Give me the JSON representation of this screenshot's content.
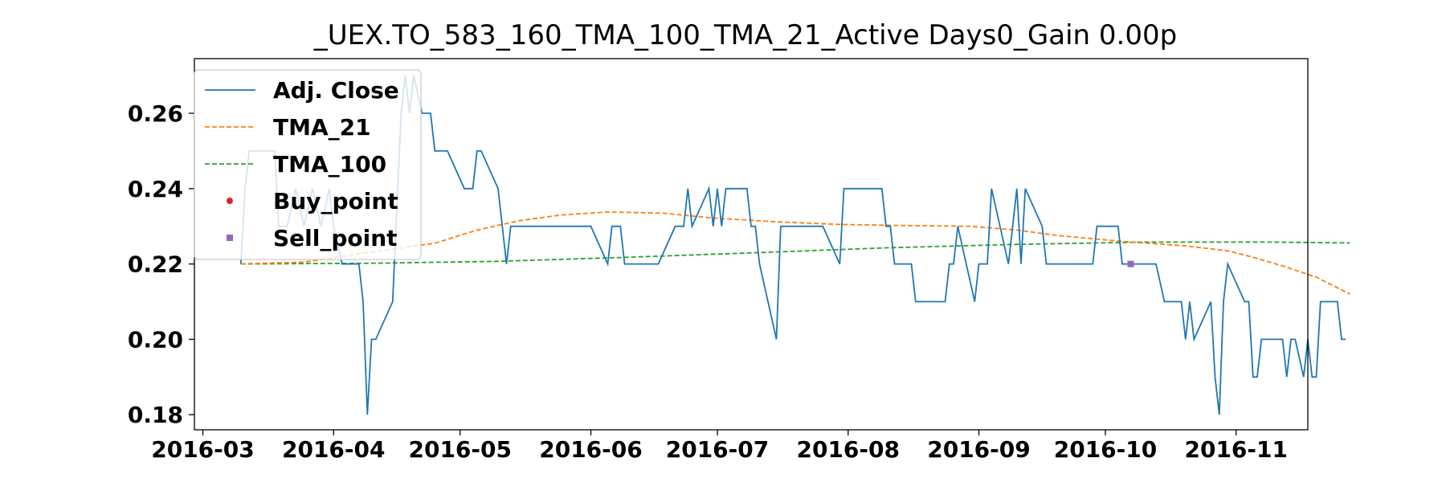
{
  "chart_data": {
    "type": "line",
    "title": "_UEX.TO_583_160_TMA_100_TMA_21_Active Days0_Gain   0.00p",
    "xlabel": "",
    "ylabel": "",
    "xlim": [
      "2016-02-28",
      "2016-11-18"
    ],
    "ylim": [
      0.176,
      0.2745
    ],
    "x_ticks": [
      "2016-03",
      "2016-04",
      "2016-05",
      "2016-06",
      "2016-07",
      "2016-08",
      "2016-09",
      "2016-10",
      "2016-11"
    ],
    "y_ticks": [
      0.18,
      0.2,
      0.22,
      0.24,
      0.26
    ],
    "y_tick_labels": [
      "0.18",
      "0.20",
      "0.22",
      "0.24",
      "0.26"
    ],
    "grid": false,
    "legend_position": "upper-left",
    "series": [
      {
        "name": "Adj. Close",
        "style": "solid",
        "color": "#1f77b4",
        "points": [
          [
            "2016-03-10",
            0.22
          ],
          [
            "2016-03-11",
            0.24
          ],
          [
            "2016-03-12",
            0.25
          ],
          [
            "2016-03-16",
            0.25
          ],
          [
            "2016-03-18",
            0.25
          ],
          [
            "2016-03-19",
            0.23
          ],
          [
            "2016-03-21",
            0.23
          ],
          [
            "2016-03-23",
            0.24
          ],
          [
            "2016-03-25",
            0.23
          ],
          [
            "2016-03-27",
            0.24
          ],
          [
            "2016-03-29",
            0.23
          ],
          [
            "2016-03-31",
            0.24
          ],
          [
            "2016-04-01",
            0.23
          ],
          [
            "2016-04-03",
            0.22
          ],
          [
            "2016-04-06",
            0.22
          ],
          [
            "2016-04-07",
            0.22
          ],
          [
            "2016-04-08",
            0.21
          ],
          [
            "2016-04-09",
            0.18
          ],
          [
            "2016-04-10",
            0.2
          ],
          [
            "2016-04-11",
            0.2
          ],
          [
            "2016-04-15",
            0.21
          ],
          [
            "2016-04-17",
            0.26
          ],
          [
            "2016-04-18",
            0.27
          ],
          [
            "2016-04-19",
            0.26
          ],
          [
            "2016-04-20",
            0.27
          ],
          [
            "2016-04-22",
            0.26
          ],
          [
            "2016-04-24",
            0.26
          ],
          [
            "2016-04-25",
            0.25
          ],
          [
            "2016-04-26",
            0.25
          ],
          [
            "2016-04-28",
            0.25
          ],
          [
            "2016-05-02",
            0.24
          ],
          [
            "2016-05-04",
            0.24
          ],
          [
            "2016-05-05",
            0.25
          ],
          [
            "2016-05-06",
            0.25
          ],
          [
            "2016-05-10",
            0.24
          ],
          [
            "2016-05-12",
            0.22
          ],
          [
            "2016-05-13",
            0.23
          ],
          [
            "2016-05-20",
            0.23
          ],
          [
            "2016-06-01",
            0.23
          ],
          [
            "2016-06-05",
            0.22
          ],
          [
            "2016-06-06",
            0.23
          ],
          [
            "2016-06-08",
            0.23
          ],
          [
            "2016-06-09",
            0.22
          ],
          [
            "2016-06-17",
            0.22
          ],
          [
            "2016-06-21",
            0.23
          ],
          [
            "2016-06-23",
            0.23
          ],
          [
            "2016-06-24",
            0.24
          ],
          [
            "2016-06-25",
            0.23
          ],
          [
            "2016-06-29",
            0.24
          ],
          [
            "2016-06-30",
            0.23
          ],
          [
            "2016-07-01",
            0.24
          ],
          [
            "2016-07-02",
            0.23
          ],
          [
            "2016-07-03",
            0.24
          ],
          [
            "2016-07-08",
            0.24
          ],
          [
            "2016-07-09",
            0.23
          ],
          [
            "2016-07-10",
            0.23
          ],
          [
            "2016-07-11",
            0.22
          ],
          [
            "2016-07-15",
            0.2
          ],
          [
            "2016-07-16",
            0.23
          ],
          [
            "2016-07-26",
            0.23
          ],
          [
            "2016-07-30",
            0.22
          ],
          [
            "2016-07-31",
            0.24
          ],
          [
            "2016-08-09",
            0.24
          ],
          [
            "2016-08-10",
            0.23
          ],
          [
            "2016-08-11",
            0.23
          ],
          [
            "2016-08-12",
            0.22
          ],
          [
            "2016-08-16",
            0.22
          ],
          [
            "2016-08-17",
            0.21
          ],
          [
            "2016-08-24",
            0.21
          ],
          [
            "2016-08-25",
            0.22
          ],
          [
            "2016-08-26",
            0.22
          ],
          [
            "2016-08-27",
            0.23
          ],
          [
            "2016-08-31",
            0.21
          ],
          [
            "2016-09-01",
            0.22
          ],
          [
            "2016-09-03",
            0.22
          ],
          [
            "2016-09-04",
            0.24
          ],
          [
            "2016-09-08",
            0.22
          ],
          [
            "2016-09-10",
            0.24
          ],
          [
            "2016-09-11",
            0.22
          ],
          [
            "2016-09-12",
            0.24
          ],
          [
            "2016-09-16",
            0.23
          ],
          [
            "2016-09-17",
            0.22
          ],
          [
            "2016-09-28",
            0.22
          ],
          [
            "2016-09-29",
            0.23
          ],
          [
            "2016-10-04",
            0.23
          ],
          [
            "2016-10-05",
            0.22
          ],
          [
            "2016-10-13",
            0.22
          ],
          [
            "2016-10-15",
            0.21
          ],
          [
            "2016-10-19",
            0.21
          ],
          [
            "2016-10-20",
            0.2
          ],
          [
            "2016-10-21",
            0.21
          ],
          [
            "2016-10-22",
            0.2
          ],
          [
            "2016-10-26",
            0.21
          ],
          [
            "2016-10-27",
            0.19
          ],
          [
            "2016-10-28",
            0.18
          ],
          [
            "2016-10-29",
            0.21
          ],
          [
            "2016-10-30",
            0.22
          ],
          [
            "2016-11-03",
            0.21
          ],
          [
            "2016-11-04",
            0.21
          ],
          [
            "2016-11-05",
            0.19
          ],
          [
            "2016-11-06",
            0.19
          ],
          [
            "2016-11-07",
            0.2
          ],
          [
            "2016-11-12",
            0.2
          ],
          [
            "2016-11-13",
            0.19
          ],
          [
            "2016-11-14",
            0.2
          ],
          [
            "2016-11-15",
            0.2
          ],
          [
            "2016-11-17",
            0.19
          ],
          [
            "2016-11-18",
            0.2
          ],
          [
            "2016-11-19",
            0.19
          ],
          [
            "2016-11-20",
            0.19
          ],
          [
            "2016-11-21",
            0.21
          ],
          [
            "2016-11-25",
            0.21
          ],
          [
            "2016-11-26",
            0.2
          ],
          [
            "2016-11-27",
            0.2
          ]
        ]
      },
      {
        "name": "TMA_21",
        "style": "dashed",
        "color": "#ff7f0e",
        "points": [
          [
            "2016-03-10",
            0.22
          ],
          [
            "2016-03-25",
            0.2205
          ],
          [
            "2016-04-10",
            0.2232
          ],
          [
            "2016-04-25",
            0.2255
          ],
          [
            "2016-05-05",
            0.229
          ],
          [
            "2016-05-15",
            0.2315
          ],
          [
            "2016-05-25",
            0.233
          ],
          [
            "2016-06-05",
            0.2338
          ],
          [
            "2016-06-18",
            0.2335
          ],
          [
            "2016-06-30",
            0.2322
          ],
          [
            "2016-07-15",
            0.2312
          ],
          [
            "2016-07-30",
            0.2305
          ],
          [
            "2016-08-15",
            0.2302
          ],
          [
            "2016-08-30",
            0.23
          ],
          [
            "2016-09-10",
            0.229
          ],
          [
            "2016-09-20",
            0.2275
          ],
          [
            "2016-10-05",
            0.226
          ],
          [
            "2016-10-20",
            0.2248
          ],
          [
            "2016-10-30",
            0.2235
          ],
          [
            "2016-11-05",
            0.2218
          ],
          [
            "2016-11-12",
            0.2195
          ],
          [
            "2016-11-20",
            0.2165
          ],
          [
            "2016-11-28",
            0.212
          ]
        ]
      },
      {
        "name": "TMA_100",
        "style": "dashed",
        "color": "#2ca02c",
        "points": [
          [
            "2016-03-10",
            0.22
          ],
          [
            "2016-04-10",
            0.2202
          ],
          [
            "2016-05-10",
            0.2207
          ],
          [
            "2016-06-10",
            0.2218
          ],
          [
            "2016-07-10",
            0.223
          ],
          [
            "2016-08-10",
            0.2243
          ],
          [
            "2016-09-10",
            0.2252
          ],
          [
            "2016-10-10",
            0.2258
          ],
          [
            "2016-11-10",
            0.2258
          ],
          [
            "2016-11-28",
            0.2256
          ]
        ]
      },
      {
        "name": "Buy_point",
        "style": "marker-circle",
        "color": "#d62728",
        "points": []
      },
      {
        "name": "Sell_point",
        "style": "marker-square",
        "color": "#9467bd",
        "points": [
          [
            "2016-10-07",
            0.22
          ]
        ]
      }
    ]
  }
}
